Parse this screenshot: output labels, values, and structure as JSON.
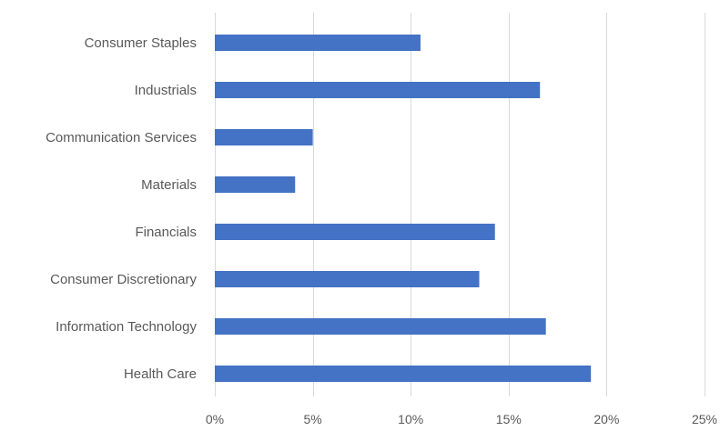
{
  "chart_data": {
    "type": "bar",
    "orientation": "horizontal",
    "categories": [
      "Consumer Staples",
      "Industrials",
      "Communication Services",
      "Materials",
      "Financials",
      "Consumer Discretionary",
      "Information Technology",
      "Health Care"
    ],
    "values": [
      10.5,
      16.6,
      5.0,
      4.1,
      14.3,
      13.5,
      16.9,
      19.2
    ],
    "value_unit": "%",
    "xlim": [
      0,
      25
    ],
    "x_ticks": [
      0,
      5,
      10,
      15,
      20,
      25
    ],
    "x_tick_labels": [
      "0%",
      "5%",
      "10%",
      "15%",
      "20%",
      "25%"
    ],
    "title": "",
    "xlabel": "",
    "ylabel": "",
    "grid": "vertical",
    "legend": "none",
    "bar_color": "#4472c4"
  }
}
